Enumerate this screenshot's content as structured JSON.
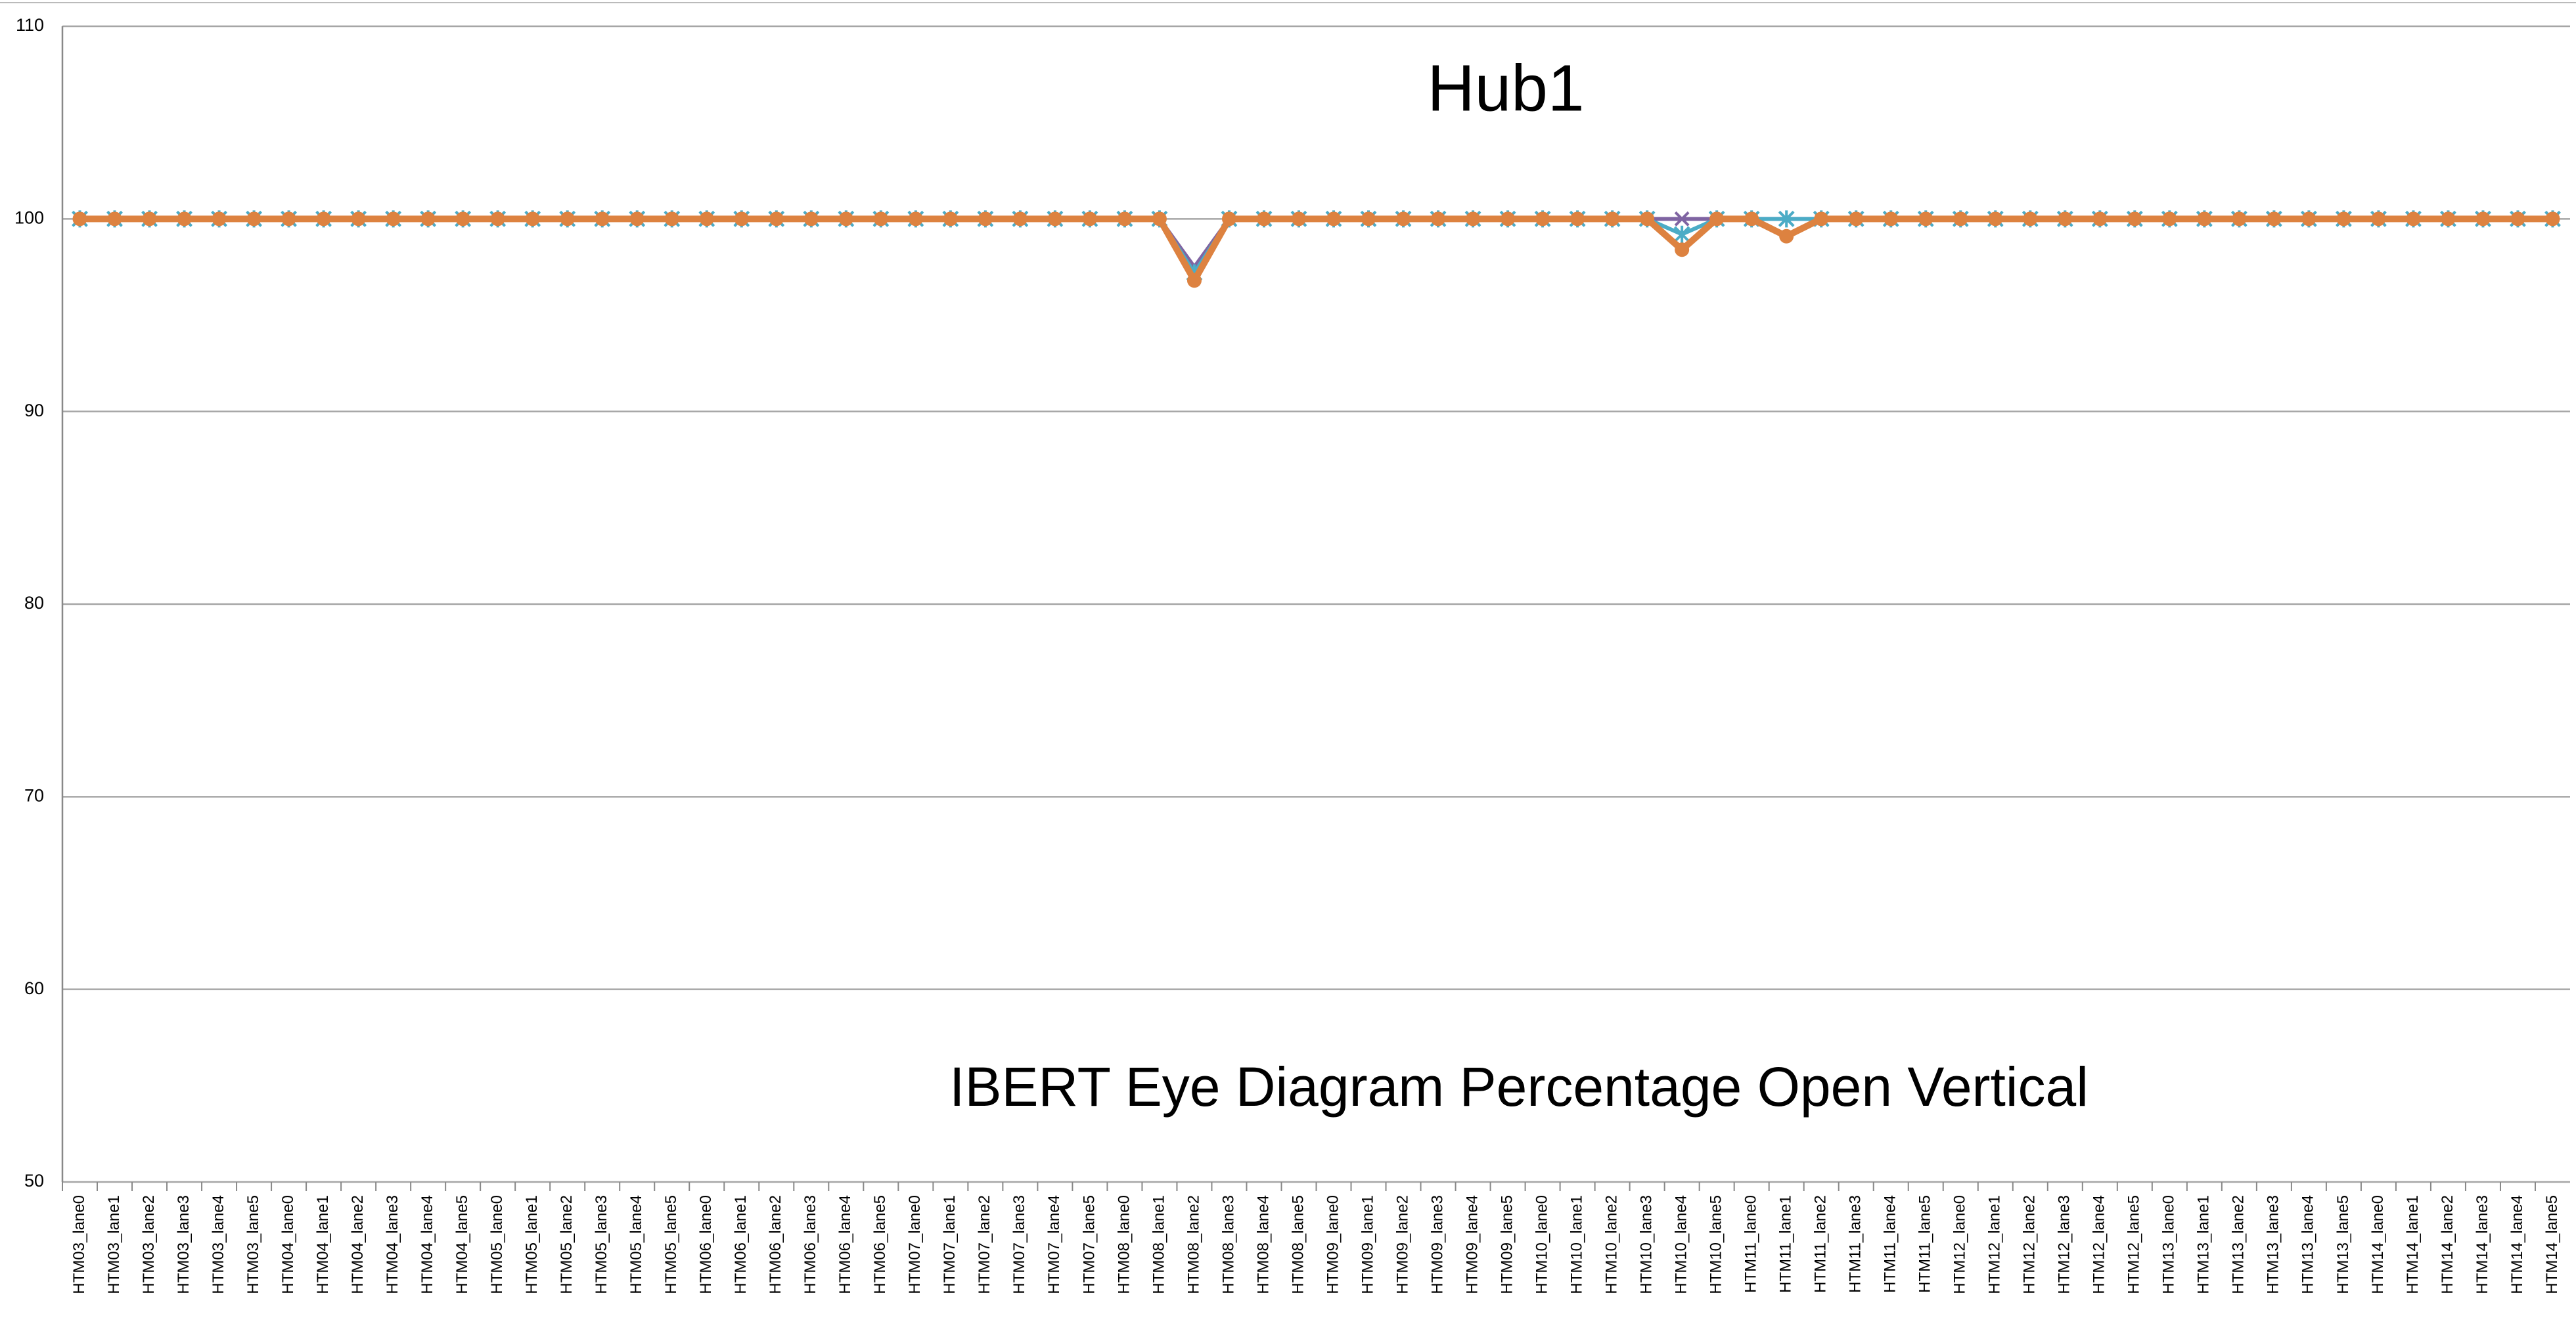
{
  "chart_data": {
    "type": "line",
    "title": "Hub1",
    "annotation": "IBERT Eye Diagram Percentage Open Vertical",
    "categories": [
      "HTM03_lane0",
      "HTM03_lane1",
      "HTM03_lane2",
      "HTM03_lane3",
      "HTM03_lane4",
      "HTM03_lane5",
      "HTM04_lane0",
      "HTM04_lane1",
      "HTM04_lane2",
      "HTM04_lane3",
      "HTM04_lane4",
      "HTM04_lane5",
      "HTM05_lane0",
      "HTM05_lane1",
      "HTM05_lane2",
      "HTM05_lane3",
      "HTM05_lane4",
      "HTM05_lane5",
      "HTM06_lane0",
      "HTM06_lane1",
      "HTM06_lane2",
      "HTM06_lane3",
      "HTM06_lane4",
      "HTM06_lane5",
      "HTM07_lane0",
      "HTM07_lane1",
      "HTM07_lane2",
      "HTM07_lane3",
      "HTM07_lane4",
      "HTM07_lane5",
      "HTM08_lane0",
      "HTM08_lane1",
      "HTM08_lane2",
      "HTM08_lane3",
      "HTM08_lane4",
      "HTM08_lane5",
      "HTM09_lane0",
      "HTM09_lane1",
      "HTM09_lane2",
      "HTM09_lane3",
      "HTM09_lane4",
      "HTM09_lane5",
      "HTM10_lane0",
      "HTM10_lane1",
      "HTM10_lane2",
      "HTM10_lane3",
      "HTM10_lane4",
      "HTM10_lane5",
      "HTM11_lane0",
      "HTM11_lane1",
      "HTM11_lane2",
      "HTM11_lane3",
      "HTM11_lane4",
      "HTM11_lane5",
      "HTM12_lane0",
      "HTM12_lane1",
      "HTM12_lane2",
      "HTM12_lane3",
      "HTM12_lane4",
      "HTM12_lane5",
      "HTM13_lane0",
      "HTM13_lane1",
      "HTM13_lane2",
      "HTM13_lane3",
      "HTM13_lane4",
      "HTM13_lane5",
      "HTM14_lane0",
      "HTM14_lane1",
      "HTM14_lane2",
      "HTM14_lane3",
      "HTM14_lane4",
      "HTM14_lane5"
    ],
    "series": [
      {
        "color": "#7f64a2",
        "marker": "x",
        "width": 6,
        "values": [
          100,
          100,
          100,
          100,
          100,
          100,
          100,
          100,
          100,
          100,
          100,
          100,
          100,
          100,
          100,
          100,
          100,
          100,
          100,
          100,
          100,
          100,
          100,
          100,
          100,
          100,
          100,
          100,
          100,
          100,
          100,
          100,
          97.5,
          100,
          100,
          100,
          100,
          100,
          100,
          100,
          100,
          100,
          100,
          100,
          100,
          100,
          100,
          100,
          100,
          100,
          100,
          100,
          100,
          100,
          100,
          100,
          100,
          100,
          100,
          100,
          100,
          100,
          100,
          100,
          100,
          100,
          100,
          100,
          100,
          100,
          100,
          100
        ]
      },
      {
        "color": "#4bacc6",
        "marker": "star",
        "width": 6,
        "values": [
          100,
          100,
          100,
          100,
          100,
          100,
          100,
          100,
          100,
          100,
          100,
          100,
          100,
          100,
          100,
          100,
          100,
          100,
          100,
          100,
          100,
          100,
          100,
          100,
          100,
          100,
          100,
          100,
          100,
          100,
          100,
          100,
          97.2,
          100,
          100,
          100,
          100,
          100,
          100,
          100,
          100,
          100,
          100,
          100,
          100,
          100,
          99.2,
          100,
          100,
          100,
          100,
          100,
          100,
          100,
          100,
          100,
          100,
          100,
          100,
          100,
          100,
          100,
          100,
          100,
          100,
          100,
          100,
          100,
          100,
          100,
          100,
          100
        ]
      },
      {
        "color": "#dd8240",
        "marker": "circle",
        "width": 10,
        "values": [
          100,
          100,
          100,
          100,
          100,
          100,
          100,
          100,
          100,
          100,
          100,
          100,
          100,
          100,
          100,
          100,
          100,
          100,
          100,
          100,
          100,
          100,
          100,
          100,
          100,
          100,
          100,
          100,
          100,
          100,
          100,
          100,
          96.8,
          100,
          100,
          100,
          100,
          100,
          100,
          100,
          100,
          100,
          100,
          100,
          100,
          100,
          98.4,
          100,
          100,
          99.1,
          100,
          100,
          100,
          100,
          100,
          100,
          100,
          100,
          100,
          100,
          100,
          100,
          100,
          100,
          100,
          100,
          100,
          100,
          100,
          100,
          100,
          100
        ]
      }
    ],
    "ylim": [
      50,
      110
    ],
    "yticks": [
      50,
      60,
      70,
      80,
      90,
      100,
      110
    ],
    "grid": true
  }
}
